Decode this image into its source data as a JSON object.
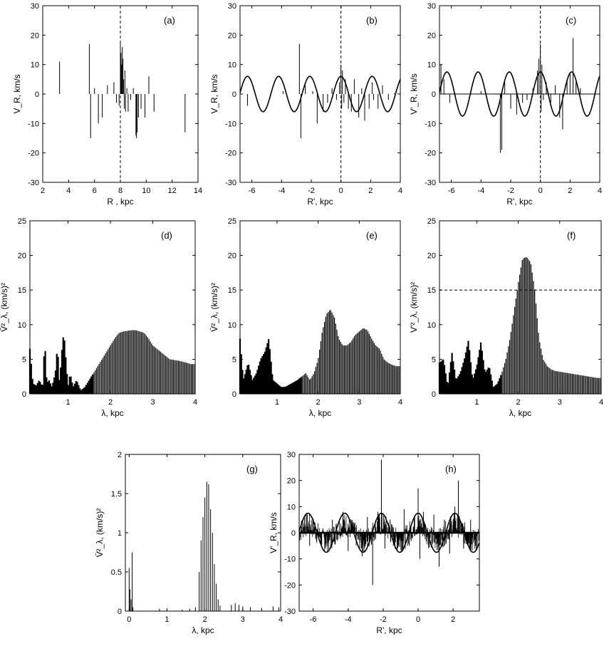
{
  "figure": {
    "panels": [
      {
        "id": "a",
        "label": "(a)",
        "xlabel": "R , kpc",
        "ylabel": "V_R, km/s",
        "xlim": [
          2,
          14
        ],
        "ylim": [
          -30,
          30
        ],
        "xticks": [
          2,
          4,
          6,
          8,
          10,
          12,
          14
        ],
        "yticks": [
          -30,
          -20,
          -10,
          0,
          10,
          20,
          30
        ],
        "vline": 8
      },
      {
        "id": "b",
        "label": "(b)",
        "xlabel": "R', kpc",
        "ylabel": "V_R, km/s",
        "xlim": [
          -6.8,
          4
        ],
        "ylim": [
          -30,
          30
        ],
        "xticks": [
          -6,
          -4,
          -2,
          0,
          2,
          4
        ],
        "yticks": [
          -30,
          -20,
          -10,
          0,
          10,
          20,
          30
        ],
        "vline": 0,
        "wave": {
          "amplitude": 6,
          "wavelength": 2.1,
          "phase_at": 0
        }
      },
      {
        "id": "c",
        "label": "(c)",
        "xlabel": "R', kpc",
        "ylabel": "V'_R, km/s",
        "xlim": [
          -6.8,
          4
        ],
        "ylim": [
          -30,
          30
        ],
        "xticks": [
          -6,
          -4,
          -2,
          0,
          2,
          4
        ],
        "yticks": [
          -30,
          -20,
          -10,
          0,
          10,
          20,
          30
        ],
        "vline": 0,
        "hline": 0,
        "wave": {
          "amplitude": 7.5,
          "wavelength": 2.1,
          "phase_at": 0
        }
      },
      {
        "id": "d",
        "label": "(d)",
        "xlabel": "λ, kpc",
        "ylabel": "V̄²_λ, (km/s)²",
        "xlim": [
          0.1,
          4
        ],
        "ylim": [
          0,
          25
        ],
        "xticks": [
          1,
          2,
          3,
          4
        ],
        "yticks": [
          0,
          5,
          10,
          15,
          20,
          25
        ]
      },
      {
        "id": "e",
        "label": "(e)",
        "xlabel": "λ, kpc",
        "ylabel": "V̄²_λ, (km/s)²",
        "xlim": [
          0.1,
          4
        ],
        "ylim": [
          0,
          25
        ],
        "xticks": [
          1,
          2,
          3,
          4
        ],
        "yticks": [
          0,
          5,
          10,
          15,
          20,
          25
        ]
      },
      {
        "id": "f",
        "label": "(f)",
        "xlabel": "λ, kpc",
        "ylabel": "V'²_λ, (km/s)²",
        "xlim": [
          0.1,
          4
        ],
        "ylim": [
          0,
          25
        ],
        "xticks": [
          1,
          2,
          3,
          4
        ],
        "yticks": [
          0,
          5,
          10,
          15,
          20,
          25
        ],
        "hline": 15
      },
      {
        "id": "g",
        "label": "(g)",
        "xlabel": "λ, kpc",
        "ylabel": "V̄²_λ, (km/s)²",
        "xlim": [
          -0.1,
          4
        ],
        "ylim": [
          0,
          2
        ],
        "xticks": [
          0,
          1,
          2,
          3,
          4
        ],
        "yticks": [
          0,
          0.5,
          1,
          1.5,
          2
        ]
      },
      {
        "id": "h",
        "label": "(h)",
        "xlabel": "R', kpc",
        "ylabel": "V'_R, km/s",
        "xlim": [
          -6.8,
          3.5
        ],
        "ylim": [
          -30,
          30
        ],
        "xticks": [
          -6,
          -4,
          -2,
          0,
          2
        ],
        "yticks": [
          -30,
          -20,
          -10,
          0,
          10,
          20,
          30
        ],
        "wave": {
          "amplitude": 7.5,
          "wavelength": 2.1,
          "phase_at": 0
        }
      }
    ]
  },
  "chart_data": [
    {
      "panel": "a",
      "type": "bar",
      "x": [
        3.3,
        5.6,
        5.7,
        6.0,
        6.3,
        6.6,
        7.0,
        7.5,
        7.7,
        7.9,
        8.0,
        8.05,
        8.1,
        8.15,
        8.2,
        8.25,
        8.3,
        8.35,
        8.4,
        8.5,
        8.6,
        8.8,
        9.0,
        9.2,
        9.25,
        9.3,
        9.4,
        9.6,
        9.9,
        10.2,
        10.6,
        13.0
      ],
      "values": [
        11,
        17,
        -15,
        2,
        -10,
        -8,
        3,
        4,
        -3,
        -4,
        18,
        14,
        10,
        16,
        12,
        5,
        -5,
        8,
        -6,
        2,
        -6,
        -2,
        2,
        -14,
        -15,
        -13,
        -8,
        -5,
        -8,
        6,
        -6,
        -13
      ]
    },
    {
      "panel": "b",
      "type": "bar",
      "x": [
        -6.8,
        -6.3,
        -3.9,
        -2.8,
        -2.7,
        -2.4,
        -1.9,
        -1.6,
        -1.2,
        -0.9,
        -0.6,
        -0.3,
        -0.1,
        0.0,
        0.05,
        0.1,
        0.2,
        0.3,
        0.5,
        0.7,
        0.9,
        1.2,
        1.4,
        1.6,
        1.9,
        2.1,
        2.2,
        2.5,
        2.8,
        3.2,
        3.6,
        4.0
      ],
      "values": [
        11,
        -4,
        1,
        17,
        -15,
        3,
        1,
        -10,
        -6,
        -3,
        2,
        -2,
        4,
        10,
        -5,
        8,
        -3,
        5,
        -5,
        -6,
        5,
        -8,
        2,
        -9,
        -5,
        4,
        -2,
        -5,
        3,
        -2,
        0.3,
        -13
      ]
    },
    {
      "panel": "c",
      "type": "bar",
      "x": [
        -6.7,
        -6.5,
        -6.1,
        -4.0,
        -2.7,
        -2.6,
        -2.4,
        -2.0,
        -1.6,
        -1.2,
        -0.9,
        -0.5,
        -0.2,
        -0.1,
        0.0,
        0.05,
        0.1,
        0.2,
        0.4,
        0.7,
        1.0,
        1.3,
        1.5,
        1.8,
        2.0,
        2.2,
        2.4,
        2.7
      ],
      "values": [
        10,
        5,
        -3,
        1,
        -20,
        -19,
        4,
        -5,
        -7,
        -3,
        -2,
        2,
        8,
        12,
        17,
        -6,
        10,
        -2,
        4,
        -3,
        3,
        -8,
        -12,
        5,
        7,
        19,
        4,
        2
      ]
    },
    {
      "panel": "d",
      "type": "bar",
      "profile_x": [
        0.1,
        0.17,
        0.25,
        0.32,
        0.4,
        0.45,
        0.5,
        0.55,
        0.62,
        0.7,
        0.75,
        0.8,
        0.85,
        0.9,
        0.95,
        1.0,
        1.05,
        1.12,
        1.2,
        1.3,
        1.4,
        1.5,
        1.6,
        1.7,
        1.8,
        1.9,
        2.0,
        2.1,
        2.2,
        2.3,
        2.4,
        2.5,
        2.6,
        2.7,
        2.8,
        2.9,
        3.0,
        3.2,
        3.4,
        3.6,
        3.8,
        3.9
      ],
      "profile_y": [
        6.5,
        1.5,
        1.2,
        2.0,
        1.0,
        7.8,
        1.5,
        2.0,
        1.0,
        3.0,
        7.0,
        1.5,
        6.0,
        9.0,
        5.0,
        1.0,
        3.0,
        1.0,
        2.0,
        0.5,
        1.0,
        2.0,
        3.0,
        4.0,
        5.0,
        6.0,
        7.0,
        8.0,
        8.8,
        9.0,
        9.1,
        9.2,
        9.2,
        9.0,
        8.8,
        8.0,
        7.0,
        6.0,
        5.0,
        4.8,
        4.5,
        4.3
      ]
    },
    {
      "panel": "e",
      "type": "bar",
      "profile_x": [
        0.1,
        0.18,
        0.3,
        0.4,
        0.5,
        0.6,
        0.7,
        0.8,
        0.9,
        1.0,
        1.1,
        1.2,
        1.35,
        1.5,
        1.6,
        1.7,
        1.8,
        1.9,
        2.0,
        2.1,
        2.2,
        2.3,
        2.4,
        2.5,
        2.6,
        2.7,
        2.8,
        2.9,
        3.0,
        3.1,
        3.2,
        3.3,
        3.4,
        3.5,
        3.6,
        3.7,
        3.8,
        3.9
      ],
      "profile_y": [
        8.0,
        2.0,
        4.5,
        2.0,
        3.0,
        5.0,
        6.0,
        8.0,
        2.0,
        1.5,
        1.0,
        1.0,
        1.5,
        2.0,
        2.5,
        3.0,
        2.0,
        3.0,
        5.0,
        9.0,
        11.5,
        12.2,
        11.0,
        8.0,
        7.0,
        7.0,
        7.5,
        8.5,
        9.0,
        9.5,
        9.2,
        8.0,
        7.0,
        6.5,
        5.0,
        4.5,
        4.2,
        4.0
      ]
    },
    {
      "panel": "f",
      "type": "bar",
      "profile_x": [
        0.1,
        0.2,
        0.3,
        0.4,
        0.5,
        0.6,
        0.7,
        0.8,
        0.9,
        1.0,
        1.1,
        1.2,
        1.3,
        1.4,
        1.5,
        1.6,
        1.7,
        1.8,
        1.9,
        2.0,
        2.1,
        2.2,
        2.3,
        2.4,
        2.5,
        2.6,
        2.7,
        2.8,
        2.9,
        3.0,
        3.2,
        3.4,
        3.6,
        3.8,
        3.9
      ],
      "profile_y": [
        4.5,
        5.0,
        1.0,
        6.0,
        2.0,
        3.0,
        5.0,
        7.8,
        2.0,
        4.0,
        7.5,
        3.0,
        4.0,
        1.0,
        1.5,
        3.0,
        5.0,
        8.0,
        12.0,
        16.0,
        19.5,
        19.8,
        19.0,
        15.0,
        8.0,
        5.0,
        4.0,
        3.5,
        3.3,
        3.2,
        3.0,
        2.8,
        2.6,
        2.4,
        2.3
      ]
    },
    {
      "panel": "g",
      "type": "bar",
      "x": [
        0.0,
        0.02,
        0.05,
        0.08,
        0.1,
        0.8,
        1.4,
        1.6,
        1.75,
        1.85,
        1.9,
        1.95,
        2.0,
        2.05,
        2.1,
        2.15,
        2.2,
        2.25,
        2.3,
        2.35,
        2.4,
        2.7,
        2.8,
        2.9,
        3.0,
        3.2,
        3.5,
        3.8,
        3.95
      ],
      "values": [
        0.55,
        0.28,
        0.15,
        0.75,
        0.05,
        0.03,
        0.02,
        0.03,
        0.05,
        0.5,
        0.9,
        1.2,
        1.45,
        1.65,
        1.62,
        1.3,
        1.0,
        0.6,
        0.35,
        0.15,
        0.07,
        0.08,
        0.1,
        0.08,
        0.06,
        0.05,
        0.04,
        0.06,
        0.05
      ]
    },
    {
      "panel": "h",
      "type": "bar",
      "x": [
        -6.5,
        -6.2,
        -5.9,
        -5.3,
        -4.9,
        -4.3,
        -4.0,
        -3.7,
        -3.2,
        -2.9,
        -2.6,
        -2.3,
        -2.1,
        -1.9,
        -1.6,
        -1.2,
        -0.8,
        -0.5,
        -0.2,
        0.0,
        0.1,
        0.3,
        0.6,
        0.9,
        1.2,
        1.5,
        1.8,
        2.1,
        2.3,
        2.6,
        3.0
      ],
      "values": [
        6,
        -5,
        4,
        -6,
        5,
        8,
        -7,
        4,
        -9,
        6,
        -20,
        8,
        28,
        -6,
        5,
        -7,
        9,
        -5,
        6,
        17,
        -10,
        8,
        -6,
        7,
        -13,
        5,
        -8,
        10,
        20,
        -6,
        5
      ]
    }
  ]
}
